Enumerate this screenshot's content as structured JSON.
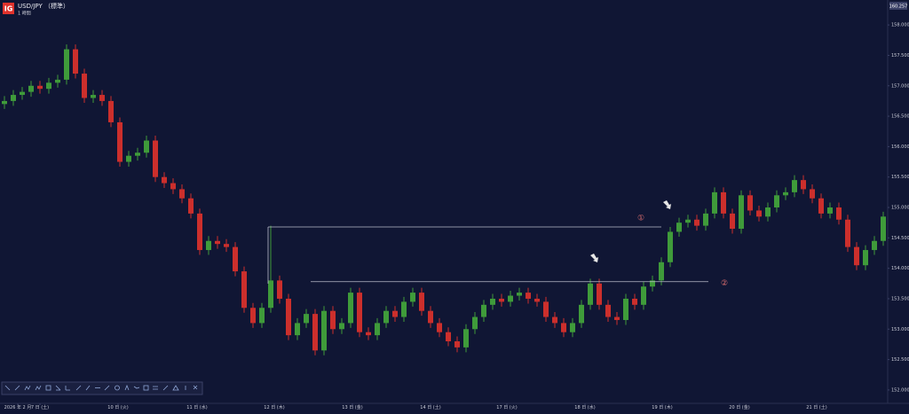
{
  "chart_data": {
    "type": "candlestick",
    "title": "USD/JPY （標準）",
    "subtitle": "1 時間",
    "logo": "IG",
    "price_tag": "160.257",
    "up_color": "#3f9b3a",
    "down_color": "#cc2f2c",
    "xlim": [
      -0.5,
      99.5
    ],
    "xticks": [
      {
        "value": 1.5,
        "label": "2026 年 2 月"
      },
      {
        "value": 4,
        "label": "7 日 (土)"
      },
      {
        "value": 12.8,
        "label": "10 日 (火)"
      },
      {
        "value": 21.7,
        "label": "11 日 (水)"
      },
      {
        "value": 30.4,
        "label": "12 日 (木)"
      },
      {
        "value": 39.2,
        "label": "13 日 (金)"
      },
      {
        "value": 48,
        "label": "14 日 (土)"
      },
      {
        "value": 56.6,
        "label": "17 日 (火)"
      },
      {
        "value": 65.4,
        "label": "18 日 (水)"
      },
      {
        "value": 74.1,
        "label": "19 日 (木)"
      },
      {
        "value": 82.8,
        "label": "20 日 (金)"
      },
      {
        "value": 91.5,
        "label": "21 日 (土)"
      }
    ],
    "ylim": [
      151.78,
      158.41
    ],
    "yticks": [
      {
        "value": 158,
        "label": "158.000"
      },
      {
        "value": 157.5,
        "label": "157.500"
      },
      {
        "value": 157,
        "label": "157.000"
      },
      {
        "value": 156.5,
        "label": "156.500"
      },
      {
        "value": 156,
        "label": "156.000"
      },
      {
        "value": 155.5,
        "label": "155.500"
      },
      {
        "value": 155,
        "label": "155.000"
      },
      {
        "value": 154.5,
        "label": "154.500"
      },
      {
        "value": 154,
        "label": "154.000"
      },
      {
        "value": 153.5,
        "label": "153.500"
      },
      {
        "value": 153,
        "label": "153.000"
      },
      {
        "value": 152.5,
        "label": "152.500"
      },
      {
        "value": 152,
        "label": "152.000"
      }
    ],
    "levels": [
      {
        "value": 154.68,
        "label": "①"
      },
      {
        "value": 153.78,
        "label": "②"
      }
    ],
    "open": [
      156.7,
      156.75,
      156.85,
      156.9,
      157.0,
      156.95,
      157.05,
      157.1,
      157.6,
      157.2,
      156.8,
      156.85,
      156.75,
      156.4,
      155.75,
      155.85,
      155.9,
      156.1,
      155.5,
      155.4,
      155.3,
      155.15,
      154.9,
      154.3,
      154.45,
      154.4,
      154.35,
      153.95,
      153.35,
      153.1,
      153.35,
      153.8,
      153.5,
      152.9,
      153.1,
      153.25,
      152.65,
      153.3,
      153.0,
      153.1,
      153.6,
      152.95,
      152.9,
      153.1,
      153.3,
      153.2,
      153.45,
      153.6,
      153.3,
      153.1,
      152.95,
      152.8,
      152.7,
      153.0,
      153.2,
      153.4,
      153.5,
      153.45,
      153.55,
      153.6,
      153.5,
      153.45,
      153.2,
      153.1,
      152.95,
      153.1,
      153.4,
      153.75,
      153.4,
      153.2,
      153.15,
      153.5,
      153.4,
      153.7,
      153.8,
      154.1,
      154.6,
      154.75,
      154.8,
      154.7,
      154.9,
      155.25,
      154.9,
      154.65,
      155.2,
      154.95,
      154.85,
      155.0,
      155.2,
      155.25,
      155.45,
      155.3,
      155.15,
      154.9,
      155.0,
      154.8,
      154.35,
      154.05,
      154.3,
      154.45
    ],
    "high": [
      156.83,
      156.93,
      156.98,
      157.08,
      157.08,
      157.13,
      157.18,
      157.68,
      157.68,
      157.28,
      156.93,
      156.93,
      156.83,
      156.48,
      155.93,
      155.98,
      156.18,
      156.18,
      155.58,
      155.48,
      155.38,
      155.23,
      154.98,
      154.53,
      154.53,
      154.48,
      154.43,
      154.03,
      153.43,
      153.43,
      154.7,
      153.88,
      153.58,
      153.18,
      153.33,
      153.33,
      153.38,
      153.38,
      153.18,
      153.68,
      153.68,
      153.03,
      153.18,
      153.38,
      153.38,
      153.53,
      153.68,
      153.68,
      153.38,
      153.18,
      153.03,
      152.88,
      153.08,
      153.28,
      153.48,
      153.58,
      153.58,
      153.63,
      153.68,
      153.68,
      153.58,
      153.53,
      153.28,
      153.18,
      153.18,
      153.48,
      153.83,
      153.83,
      153.48,
      153.28,
      153.58,
      153.58,
      153.78,
      153.88,
      154.18,
      154.68,
      154.83,
      154.88,
      154.88,
      154.98,
      155.33,
      155.33,
      154.98,
      155.28,
      155.28,
      155.03,
      155.08,
      155.28,
      155.33,
      155.53,
      155.53,
      155.38,
      155.23,
      155.08,
      155.08,
      154.88,
      154.43,
      154.38,
      154.53,
      154.93
    ],
    "low": [
      156.62,
      156.67,
      156.77,
      156.82,
      156.87,
      156.87,
      156.97,
      157.02,
      157.12,
      156.72,
      156.72,
      156.67,
      156.32,
      155.67,
      155.67,
      155.77,
      155.82,
      155.42,
      155.32,
      155.22,
      155.07,
      154.82,
      154.22,
      154.22,
      154.32,
      154.27,
      153.87,
      153.27,
      153.02,
      153.02,
      153.27,
      153.42,
      152.82,
      152.82,
      153.02,
      152.57,
      152.57,
      152.92,
      152.92,
      153.02,
      152.87,
      152.82,
      152.82,
      153.02,
      153.12,
      153.12,
      153.37,
      153.22,
      153.02,
      152.87,
      152.72,
      152.62,
      152.62,
      152.92,
      153.12,
      153.32,
      153.37,
      153.37,
      153.47,
      153.42,
      153.37,
      153.12,
      153.02,
      152.87,
      152.87,
      153.02,
      153.32,
      153.32,
      153.12,
      153.07,
      153.07,
      153.32,
      153.32,
      153.62,
      153.72,
      154.02,
      154.52,
      154.67,
      154.62,
      154.62,
      154.82,
      154.82,
      154.57,
      154.57,
      154.87,
      154.77,
      154.77,
      154.92,
      155.12,
      155.17,
      155.22,
      155.07,
      154.82,
      154.82,
      154.72,
      154.27,
      153.97,
      153.97,
      154.22,
      154.37
    ],
    "close": [
      156.75,
      156.85,
      156.9,
      157.0,
      156.95,
      157.05,
      157.1,
      157.6,
      157.2,
      156.8,
      156.85,
      156.75,
      156.4,
      155.75,
      155.85,
      155.9,
      156.1,
      155.5,
      155.4,
      155.3,
      155.15,
      154.9,
      154.3,
      154.45,
      154.4,
      154.35,
      153.95,
      153.35,
      153.1,
      153.35,
      153.8,
      153.5,
      152.9,
      153.1,
      153.25,
      152.65,
      153.3,
      153.0,
      153.1,
      153.6,
      152.95,
      152.9,
      153.1,
      153.3,
      153.2,
      153.45,
      153.6,
      153.3,
      153.1,
      152.95,
      152.8,
      152.7,
      153.0,
      153.2,
      153.4,
      153.5,
      153.45,
      153.55,
      153.6,
      153.5,
      153.45,
      153.2,
      153.1,
      152.95,
      153.1,
      153.4,
      153.75,
      153.4,
      153.2,
      153.15,
      153.5,
      153.4,
      153.7,
      153.8,
      154.1,
      154.6,
      154.75,
      154.8,
      154.7,
      154.9,
      155.25,
      154.9,
      154.65,
      155.2,
      154.95,
      154.85,
      155.0,
      155.2,
      155.25,
      155.45,
      155.3,
      155.15,
      154.9,
      155.0,
      154.8,
      154.35,
      154.05,
      154.3,
      154.45,
      154.85
    ]
  }
}
